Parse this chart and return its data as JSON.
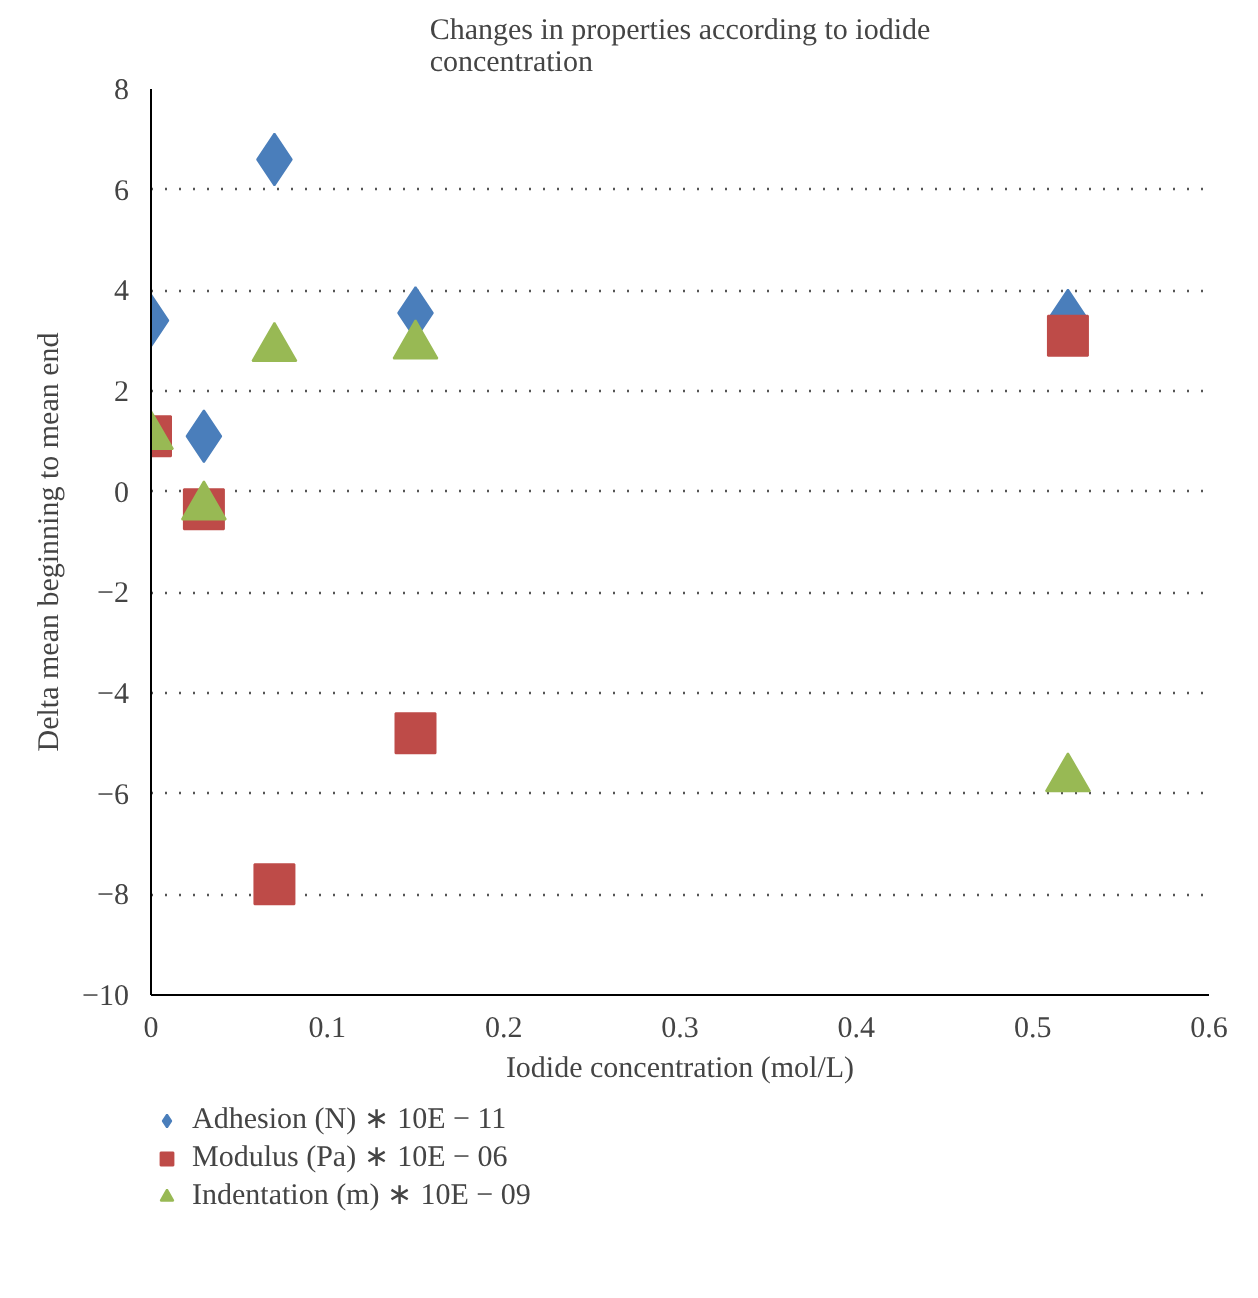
{
  "chart_data": {
    "type": "scatter",
    "title": "Changes in properties according to iodide concentration",
    "xlabel": "Iodide concentration (mol/L)",
    "ylabel": "Delta mean beginning to mean end",
    "x": [
      0,
      0.03,
      0.07,
      0.15,
      0.52
    ],
    "series": [
      {
        "name": "Adhesion (N) ∗ 10E − 11",
        "color": "#4a7ebb",
        "marker": "diamond",
        "values": [
          3.4,
          1.1,
          6.6,
          3.55,
          3.5
        ]
      },
      {
        "name": "Modulus (Pa) ∗ 10E − 06",
        "color": "#be4b48",
        "marker": "square",
        "values": [
          1.1,
          -0.35,
          -7.8,
          -4.8,
          3.1
        ]
      },
      {
        "name": "Indentation (m) ∗ 10E − 09",
        "color": "#98b954",
        "marker": "triangle",
        "values": [
          1.1,
          -0.3,
          2.85,
          2.9,
          -5.7
        ]
      }
    ],
    "xlim": [
      0,
      0.6
    ],
    "xticks": [
      0,
      0.1,
      0.2,
      0.3,
      0.4,
      0.5,
      0.6
    ],
    "ylim": [
      -10,
      8
    ],
    "yticks": [
      {
        "value": -10,
        "label": "−10"
      },
      {
        "value": -8,
        "label": "−8"
      },
      {
        "value": -6,
        "label": "−6"
      },
      {
        "value": -4,
        "label": "−4"
      },
      {
        "value": -2,
        "label": "−2"
      },
      0,
      2,
      4,
      6,
      8
    ],
    "grid": "y",
    "legend": "bottom"
  }
}
